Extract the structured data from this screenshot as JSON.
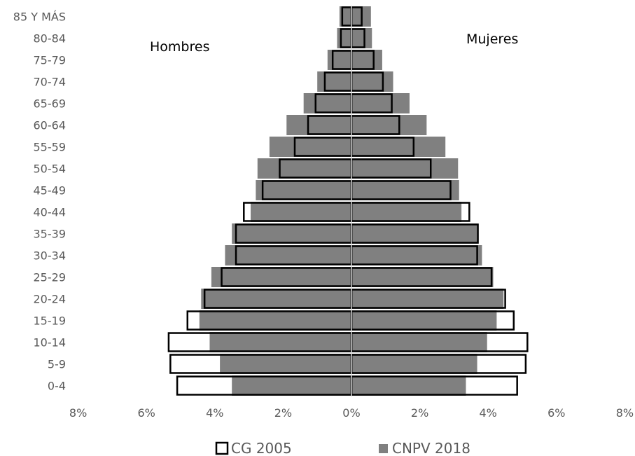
{
  "chart_data": {
    "type": "bar",
    "orientation": "horizontal-population-pyramid",
    "categories": [
      "85 Y MÁS",
      "80-84",
      "75-79",
      "70-74",
      "65-69",
      "60-64",
      "55-59",
      "50-54",
      "45-49",
      "40-44",
      "35-39",
      "30-34",
      "25-29",
      "20-24",
      "15-19",
      "10-14",
      "5-9",
      "0-4"
    ],
    "left_label": "Hombres",
    "right_label": "Mujeres",
    "x_ticks": [
      "8%",
      "6%",
      "4%",
      "2%",
      "0%",
      "2%",
      "4%",
      "6%",
      "8%"
    ],
    "xlim": [
      -8,
      8
    ],
    "series": [
      {
        "name": "CG 2005",
        "style": "outline",
        "color": "#000000",
        "fill": "#ffffff",
        "hombres": [
          0.27,
          0.31,
          0.55,
          0.78,
          1.05,
          1.27,
          1.66,
          2.1,
          2.6,
          3.15,
          3.38,
          3.38,
          3.8,
          4.3,
          4.8,
          5.35,
          5.3,
          5.1
        ],
        "mujeres": [
          0.3,
          0.38,
          0.65,
          0.92,
          1.18,
          1.4,
          1.82,
          2.32,
          2.9,
          3.45,
          3.7,
          3.68,
          4.1,
          4.5,
          4.75,
          5.15,
          5.1,
          4.85
        ]
      },
      {
        "name": "CNPV 2018",
        "style": "solid",
        "color": "#808080",
        "hombres": [
          0.35,
          0.42,
          0.7,
          1.0,
          1.4,
          1.9,
          2.4,
          2.75,
          2.8,
          2.95,
          3.5,
          3.7,
          4.1,
          4.4,
          4.45,
          4.15,
          3.85,
          3.5
        ],
        "mujeres": [
          0.57,
          0.6,
          0.9,
          1.22,
          1.7,
          2.2,
          2.75,
          3.12,
          3.15,
          3.22,
          3.72,
          3.82,
          4.15,
          4.45,
          4.25,
          3.97,
          3.68,
          3.35
        ]
      }
    ],
    "legend_position": "bottom",
    "grid": false
  }
}
